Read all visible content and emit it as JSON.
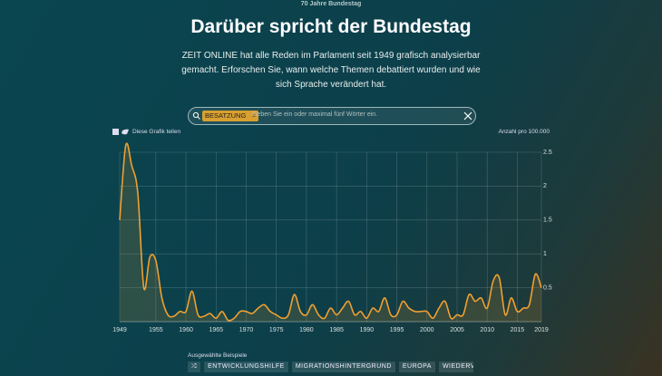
{
  "header": {
    "kicker": "70 Jahre Bundestag",
    "title": "Darüber spricht der Bundestag",
    "intro": [
      "ZEIT ONLINE hat alle Reden im Parlament seit 1949 grafisch analysierbar",
      "gemacht. Erforschen Sie, wann welche Themen debattiert wurden und wie",
      "sich Sprache verändert hat."
    ]
  },
  "search": {
    "tag": "BESATZUNG",
    "placeholder": "Geben Sie ein oder maximal fünf Wörter ein."
  },
  "share": "Diese Grafik teilen",
  "chart_data": {
    "type": "line",
    "y_label": "Anzahl pro 100.000",
    "color": "#f0a030",
    "grid": true,
    "xlim": [
      1949,
      2019
    ],
    "xticks": [
      1949,
      1955,
      1960,
      1965,
      1970,
      1975,
      1980,
      1985,
      1990,
      1995,
      2000,
      2005,
      2010,
      2015,
      2019
    ],
    "ylim": [
      0,
      2.5
    ],
    "yticks": [
      0.5,
      1,
      1.5,
      2,
      2.5
    ],
    "x": [
      1949,
      1950,
      1951,
      1952,
      1953,
      1954,
      1955,
      1956,
      1957,
      1958,
      1959,
      1960,
      1961,
      1962,
      1963,
      1964,
      1965,
      1966,
      1967,
      1968,
      1969,
      1970,
      1971,
      1972,
      1973,
      1974,
      1975,
      1976,
      1977,
      1978,
      1979,
      1980,
      1981,
      1982,
      1983,
      1984,
      1985,
      1986,
      1987,
      1988,
      1989,
      1990,
      1991,
      1992,
      1993,
      1994,
      1995,
      1996,
      1997,
      1998,
      1999,
      2000,
      2001,
      2002,
      2003,
      2004,
      2005,
      2006,
      2007,
      2008,
      2009,
      2010,
      2011,
      2012,
      2013,
      2014,
      2015,
      2016,
      2017,
      2018,
      2019
    ],
    "values": [
      1.5,
      2.6,
      2.3,
      1.9,
      0.5,
      0.95,
      0.9,
      0.35,
      0.1,
      0.08,
      0.15,
      0.15,
      0.45,
      0.1,
      0.08,
      0.12,
      0.05,
      0.15,
      0.02,
      0.05,
      0.15,
      0.15,
      0.12,
      0.2,
      0.25,
      0.15,
      0.1,
      0.05,
      0.1,
      0.4,
      0.15,
      0.1,
      0.25,
      0.1,
      0.05,
      0.2,
      0.1,
      0.2,
      0.3,
      0.1,
      0.15,
      0.05,
      0.2,
      0.15,
      0.35,
      0.1,
      0.1,
      0.3,
      0.2,
      0.15,
      0.15,
      0.15,
      0.05,
      0.2,
      0.3,
      0.05,
      0.1,
      0.1,
      0.4,
      0.3,
      0.35,
      0.2,
      0.6,
      0.65,
      0.1,
      0.35,
      0.15,
      0.2,
      0.25,
      0.7,
      0.5
    ]
  },
  "examples": {
    "title": "Ausgewählte Beispiele",
    "items": [
      "ENTWICKLUNGSHILFE",
      "MIGRATIONSHINTERGRUND",
      "EUROPA",
      "WIEDERVEREINI"
    ]
  }
}
